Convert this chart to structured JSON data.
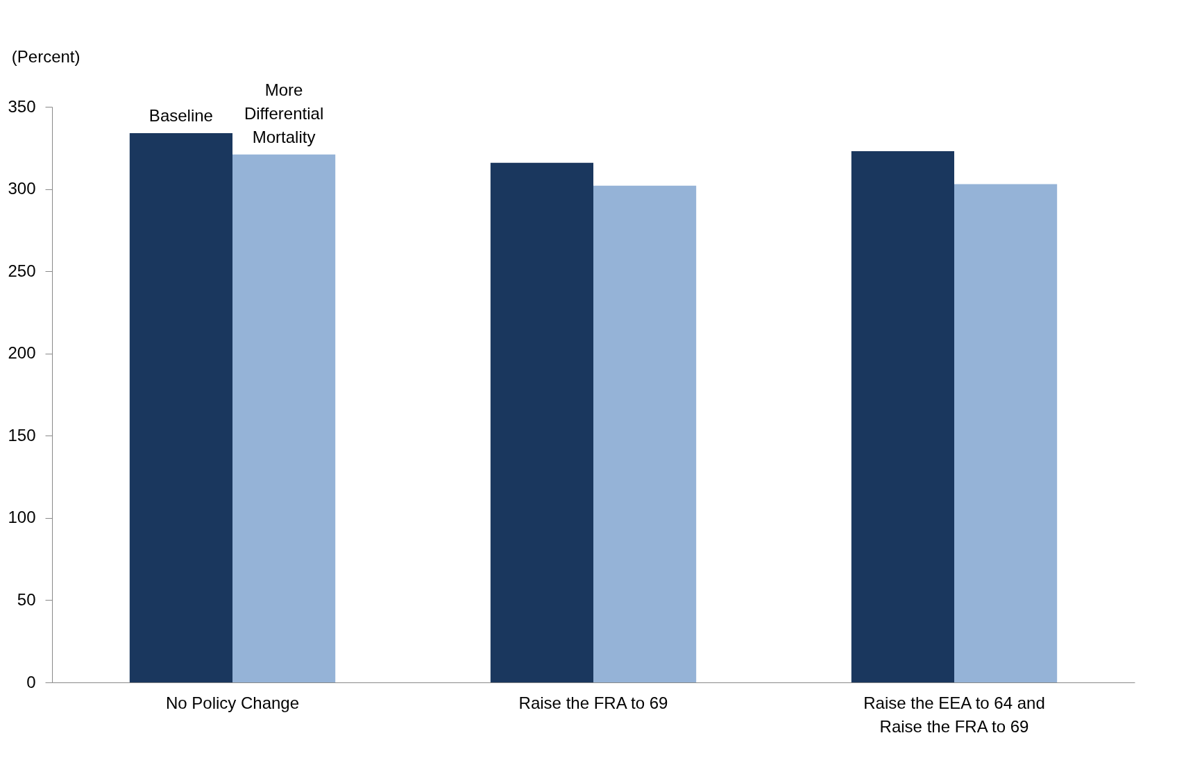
{
  "chart_data": {
    "type": "bar",
    "ylabel": "(Percent)",
    "categories": [
      "No Policy Change",
      "Raise the FRA to 69",
      "Raise the EEA to 64 and Raise the FRA to 69"
    ],
    "series": [
      {
        "name": "Baseline",
        "color": "#1a375e",
        "values": [
          334,
          316,
          323
        ]
      },
      {
        "name": "More Differential Mortality",
        "color": "#95b3d7",
        "values": [
          321,
          302,
          303
        ]
      }
    ],
    "ylim": [
      0,
      350
    ],
    "yticks": [
      0,
      50,
      100,
      150,
      200,
      250,
      300,
      350
    ],
    "grid": false,
    "legend": false
  }
}
